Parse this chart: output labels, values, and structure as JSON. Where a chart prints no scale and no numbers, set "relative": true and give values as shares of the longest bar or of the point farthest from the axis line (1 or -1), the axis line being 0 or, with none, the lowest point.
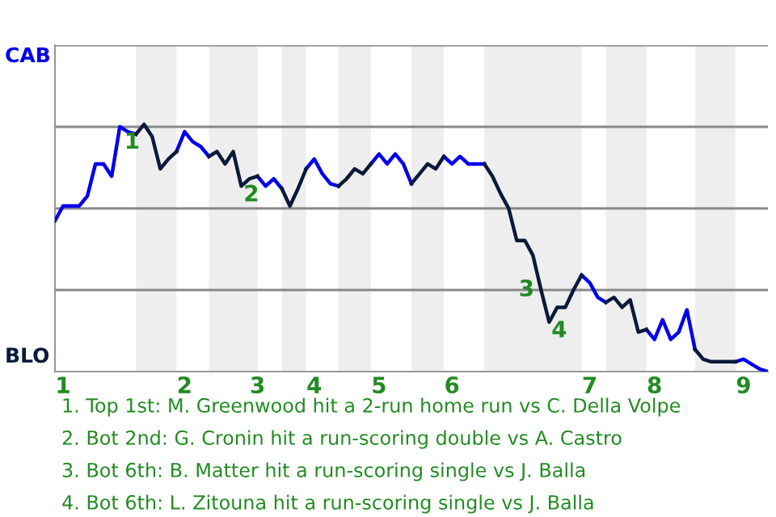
{
  "chart_data": {
    "type": "line",
    "relative": true,
    "categories": [
      null,
      "1",
      null,
      null,
      null,
      null,
      null,
      null,
      null,
      null,
      null,
      null,
      null,
      null,
      null,
      null,
      "2",
      null,
      null,
      null,
      null,
      null,
      null,
      null,
      null,
      "3",
      null,
      null,
      null,
      null,
      null,
      null,
      "4",
      null,
      null,
      null,
      null,
      null,
      null,
      null,
      "5",
      null,
      null,
      null,
      null,
      null,
      null,
      null,
      null,
      "6",
      null,
      null,
      null,
      null,
      null,
      null,
      null,
      null,
      null,
      null,
      null,
      null,
      null,
      null,
      null,
      null,
      "7",
      null,
      null,
      null,
      null,
      null,
      null,
      null,
      "8",
      null,
      null,
      null,
      null,
      null,
      null,
      null,
      null,
      null,
      null,
      "9",
      null,
      null,
      null
    ],
    "line_style": "solid",
    "marker": "none",
    "ref_lines": [
      {
        "axis": "y",
        "value": 0.33,
        "label": null,
        "color": "#888888"
      },
      {
        "axis": "y",
        "value": 0.66,
        "label": null,
        "color": "#888888"
      },
      {
        "axis": "y",
        "value": 0.99,
        "label": null,
        "color": "#888888"
      },
      {
        "axis": "y",
        "value": 1.32,
        "label": null,
        "color": "#888888"
      }
    ],
    "series": [
      {
        "color": "#0000ee",
        "values": [
          0.61,
          0.67,
          0.67,
          0.67,
          0.71,
          0.84,
          0.84,
          0.79,
          0.99,
          0.97,
          0.96,
          null,
          null,
          null,
          null,
          0.89,
          0.97,
          0.93,
          0.91,
          0.87,
          null,
          null,
          null,
          null,
          null,
          0.79,
          0.75,
          0.78,
          0.74,
          null,
          null,
          0.82,
          0.86,
          0.8,
          0.76,
          0.75,
          null,
          null,
          null,
          0.84,
          0.88,
          0.84,
          0.88,
          0.84,
          0.76,
          null,
          null,
          null,
          0.87,
          0.84,
          0.87,
          0.84,
          0.84,
          0.84,
          null,
          null,
          null,
          null,
          null,
          null,
          null,
          null,
          null,
          null,
          null,
          0.39,
          0.36,
          0.3,
          0.28,
          null,
          null,
          null,
          null,
          0.17,
          0.13,
          0.21,
          0.13,
          0.16,
          0.25,
          0.09,
          null,
          null,
          null,
          null,
          0.04,
          0.05,
          0.03,
          0.01,
          0
        ]
      },
      {
        "color": "#0a1a3a",
        "values": [
          null,
          null,
          null,
          null,
          null,
          null,
          null,
          null,
          null,
          null,
          0.96,
          1,
          0.95,
          0.82,
          0.86,
          0.89,
          null,
          null,
          null,
          0.87,
          0.89,
          0.84,
          0.89,
          0.75,
          0.78,
          0.79,
          null,
          null,
          0.74,
          0.67,
          0.74,
          0.82,
          null,
          null,
          null,
          0.75,
          0.78,
          0.82,
          0.8,
          0.84,
          null,
          null,
          null,
          null,
          0.76,
          0.8,
          0.84,
          0.82,
          0.87,
          null,
          null,
          null,
          null,
          0.84,
          0.79,
          0.72,
          0.66,
          0.53,
          0.53,
          0.47,
          0.33,
          0.2,
          0.26,
          0.26,
          0.33,
          0.39,
          null,
          null,
          0.28,
          0.3,
          0.26,
          0.29,
          0.16,
          0.17,
          null,
          null,
          null,
          null,
          null,
          0.09,
          0.05,
          0.04,
          0.04,
          0.04,
          0.04,
          null,
          null,
          null,
          null
        ]
      }
    ],
    "annotations": [
      "CAB",
      "BLO",
      {
        "text": "1",
        "y": 0.99
      },
      {
        "text": "2",
        "y": 0.75
      },
      {
        "text": "3",
        "y": 0.33
      },
      {
        "text": "4",
        "y": 0.2
      },
      "1. Top 1st: M. Greenwood hit a 2-run home run vs C. Della Volpe",
      "2. Bot 2nd: G. Cronin hit a run-scoring double vs A. Castro",
      "3. Bot 6th: B. Matter hit a run-scoring single vs J. Balla",
      "4. Bot 6th: L. Zitouna hit a run-scoring single vs J. Balla"
    ]
  }
}
